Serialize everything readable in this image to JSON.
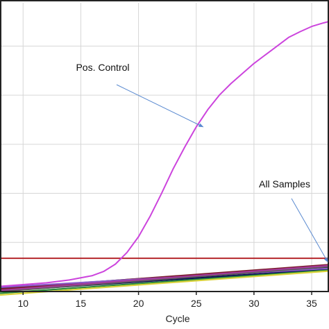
{
  "chart_data": {
    "type": "line",
    "xlabel": "Cycle",
    "ylabel": "",
    "xlim": [
      8,
      36.5
    ],
    "ylim": [
      0,
      100
    ],
    "x_ticks": [
      10,
      15,
      20,
      25,
      30,
      35
    ],
    "grid": true,
    "legend": "none",
    "threshold": {
      "y": 11.5,
      "color": "#b5252a"
    },
    "series": [
      {
        "color": "#cc44dd",
        "x": [
          8,
          10,
          12,
          14,
          16,
          17,
          18,
          19,
          20,
          21,
          22,
          23,
          24,
          25,
          26,
          27,
          28,
          29,
          30,
          31,
          32,
          33,
          34,
          35,
          36,
          36.5
        ],
        "y": [
          1.8,
          2.4,
          3.0,
          4.0,
          5.5,
          7.0,
          9.5,
          13.5,
          19.0,
          26.0,
          34.0,
          42.5,
          50.0,
          57.0,
          63.0,
          68.0,
          72.0,
          75.5,
          79.0,
          82.0,
          85.0,
          88.0,
          90.0,
          91.8,
          93.0,
          93.5
        ]
      },
      {
        "color": "#111111",
        "x": [
          8,
          36.5
        ],
        "y": [
          0.6,
          8.3
        ]
      },
      {
        "color": "#1f3ea8",
        "x": [
          8,
          36.5
        ],
        "y": [
          1.1,
          8.9
        ]
      },
      {
        "color": "#0a0a5a",
        "x": [
          8,
          36.5
        ],
        "y": [
          0.2,
          7.7
        ]
      },
      {
        "color": "#7a1a2a",
        "x": [
          8,
          36.5
        ],
        "y": [
          0.9,
          9.3
        ]
      },
      {
        "color": "#2a8a3a",
        "x": [
          8,
          36.5
        ],
        "y": [
          -0.6,
          7.4
        ]
      },
      {
        "color": "#d9d23a",
        "x": [
          8,
          36.5
        ],
        "y": [
          -1.2,
          7.1
        ]
      },
      {
        "color": "#8a5ac8",
        "x": [
          8,
          36.5
        ],
        "y": [
          1.5,
          8.0
        ]
      },
      {
        "color": "#5a5a5a",
        "x": [
          8,
          36.5
        ],
        "y": [
          0.0,
          8.6
        ]
      },
      {
        "color": "#a33a9a",
        "x": [
          8,
          36.5
        ],
        "y": [
          0.4,
          9.0
        ]
      }
    ],
    "annotations": [
      {
        "text": "Pos. Control",
        "target_x": 25.6,
        "target_y": 57.0,
        "color": "#5a8ad0"
      },
      {
        "text": "All Samples",
        "target_x": 36.4,
        "target_y": 10.2,
        "color": "#5a8ad0"
      }
    ]
  }
}
